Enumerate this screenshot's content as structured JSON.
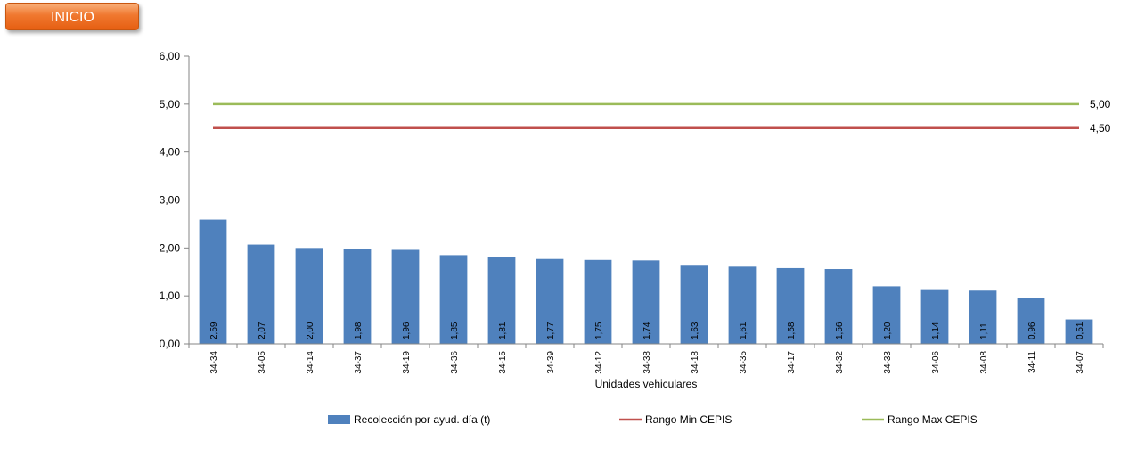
{
  "inicio_button": {
    "label": "INICIO"
  },
  "chart_data": {
    "type": "bar",
    "xlabel": "Unidades vehiculares",
    "ylabel": "",
    "ylim": [
      0,
      6
    ],
    "ytick_labels": [
      "0,00",
      "1,00",
      "2,00",
      "3,00",
      "4,00",
      "5,00",
      "6,00"
    ],
    "categories": [
      "34-34",
      "34-05",
      "34-14",
      "34-37",
      "34-19",
      "34-36",
      "34-15",
      "34-39",
      "34-12",
      "34-38",
      "34-18",
      "34-35",
      "34-17",
      "34-32",
      "34-33",
      "34-06",
      "34-08",
      "34-11",
      "34-07"
    ],
    "series": [
      {
        "name": "Recolección por ayud. día (t)",
        "kind": "bar",
        "color": "#4f81bd",
        "values": [
          2.59,
          2.07,
          2.0,
          1.98,
          1.96,
          1.85,
          1.81,
          1.77,
          1.75,
          1.74,
          1.63,
          1.61,
          1.58,
          1.56,
          1.2,
          1.14,
          1.11,
          0.96,
          0.51
        ],
        "value_labels": [
          "2,59",
          "2,07",
          "2,00",
          "1,98",
          "1,96",
          "1,85",
          "1,81",
          "1,77",
          "1,75",
          "1,74",
          "1,63",
          "1,61",
          "1,58",
          "1,56",
          "1,20",
          "1,14",
          "1,11",
          "0,96",
          "0,51"
        ]
      },
      {
        "name": "Rango Min CEPIS",
        "kind": "line",
        "color": "#c0504d",
        "value": 4.5,
        "end_label": "4,50"
      },
      {
        "name": "Rango Max CEPIS",
        "kind": "line",
        "color": "#9bbb59",
        "value": 5.0,
        "end_label": "5,00"
      }
    ],
    "grid": false,
    "legend_position": "bottom"
  }
}
